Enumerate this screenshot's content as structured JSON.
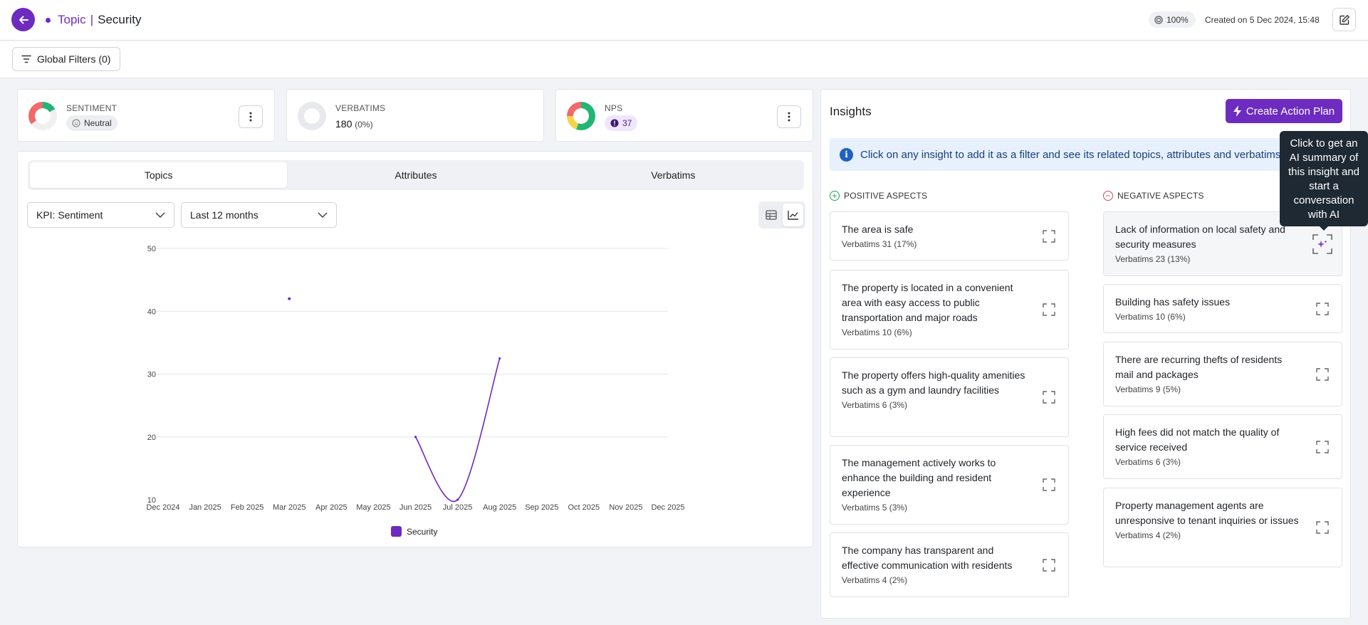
{
  "header": {
    "crumb_topic": "Topic",
    "crumb_sep": "|",
    "crumb_name": "Security",
    "score_badge": "100%",
    "created": "Created on 5 Dec 2024, 15:48"
  },
  "filters": {
    "label": "Global Filters (0)"
  },
  "kpis": {
    "sentiment": {
      "label": "SENTIMENT",
      "value": "Neutral"
    },
    "verbatims": {
      "label": "VERBATIMS",
      "value": "180",
      "sub": "(0%)"
    },
    "nps": {
      "label": "NPS",
      "value": "37"
    }
  },
  "tabs": [
    "Topics",
    "Attributes",
    "Verbatims"
  ],
  "selects": {
    "kpi": "KPI: Sentiment",
    "period": "Last 12 months"
  },
  "chart_data": {
    "type": "line",
    "x": [
      "Dec 2024",
      "Jan 2025",
      "Feb 2025",
      "Mar 2025",
      "Apr 2025",
      "May 2025",
      "Jun 2025",
      "Jul 2025",
      "Aug 2025",
      "Sep 2025",
      "Oct 2025",
      "Nov 2025",
      "Dec 2025"
    ],
    "series": [
      {
        "name": "Security",
        "values": [
          null,
          null,
          null,
          42,
          null,
          null,
          20,
          10,
          32.5,
          null,
          null,
          null,
          null
        ]
      }
    ],
    "yticks": [
      10,
      20,
      30,
      40,
      50
    ],
    "ylim": [
      10,
      50
    ],
    "grid": true,
    "legend": "bottom",
    "color": "#6e2bbf"
  },
  "insights": {
    "title": "Insights",
    "create_btn": "Create Action Plan",
    "info": "Click on any insight to add it as a filter and see its related topics, attributes and verbatims.",
    "positive_head": "POSITIVE ASPECTS",
    "negative_head": "NEGATIVE ASPECTS",
    "positive": [
      {
        "title": "The area is safe",
        "verbatims": "Verbatims 31 (17%)"
      },
      {
        "title": "The property is located in a convenient area with easy access to public transportation and major roads",
        "verbatims": "Verbatims 10 (6%)"
      },
      {
        "title": "The property offers high-quality amenities such as a gym and laundry facilities",
        "verbatims": "Verbatims 6 (3%)"
      },
      {
        "title": "The management actively works to enhance the building and resident experience",
        "verbatims": "Verbatims 5 (3%)"
      },
      {
        "title": "The company has transparent and effective communication with residents",
        "verbatims": "Verbatims 4 (2%)"
      }
    ],
    "negative": [
      {
        "title": "Lack of information on local safety and security measures",
        "verbatims": "Verbatims 23 (13%)"
      },
      {
        "title": "Building has safety issues",
        "verbatims": "Verbatims 10 (6%)"
      },
      {
        "title": "There are recurring thefts of residents mail and packages",
        "verbatims": "Verbatims 9 (5%)"
      },
      {
        "title": "High fees did not match the quality of service received",
        "verbatims": "Verbatims 6 (3%)"
      },
      {
        "title": "Property management agents are unresponsive to tenant inquiries or issues",
        "verbatims": "Verbatims 4 (2%)"
      }
    ],
    "tooltip": "Click to get an AI summary of this insight and start a conversation with AI"
  },
  "colors": {
    "accent": "#6e2bbf",
    "positive": "#22a05b",
    "negative": "#d9455f",
    "info_bg": "#e7f0fd"
  }
}
